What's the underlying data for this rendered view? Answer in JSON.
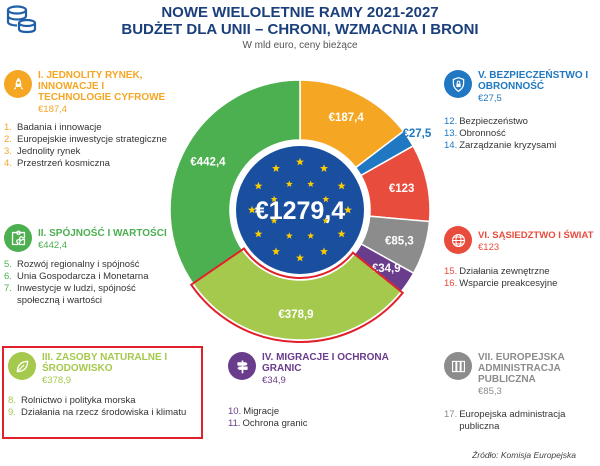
{
  "header": {
    "title_line1": "NOWE WIELOLETNIE RAMY 2021-2027",
    "title_line2": "BUDŻET DLA UNII – CHRONI, WZMACNIA I BRONI",
    "subtitle": "W mld euro, ceny bieżące"
  },
  "center_total": "€1279,4",
  "source": "Źródło: Komisja Europejska",
  "headings": {
    "h1": {
      "name": "I. JEDNOLITY RYNEK, INNOWACJE I TECHNOLOGIE CYFROWE",
      "amount": "€187,4",
      "color": "#f5a623",
      "icon": "rocket-icon"
    },
    "h2": {
      "name": "II. SPÓJNOŚĆ I WARTOŚCI",
      "amount": "€442,4",
      "color": "#4caf50",
      "icon": "puzzle-icon"
    },
    "h3": {
      "name": "III. ZASOBY NATURALNE I ŚRODOWISKO",
      "amount": "€378,9",
      "color": "#a5c94c",
      "icon": "leaf-icon"
    },
    "h4": {
      "name": "IV. MIGRACJE I OCHRONA GRANIC",
      "amount": "€34,9",
      "color": "#6a3c8c",
      "icon": "signpost-icon"
    },
    "h5": {
      "name": "V. BEZPIECZEŃSTWO I OBRONNOŚĆ",
      "amount": "€27,5",
      "color": "#1f78c1",
      "icon": "shield-lock-icon"
    },
    "h6": {
      "name": "VI. SĄSIEDZTWO I ŚWIAT",
      "amount": "€123",
      "color": "#e84c3d",
      "icon": "globe-icon"
    },
    "h7": {
      "name": "VII. EUROPEJSKA ADMINISTRACJA PUBLICZNA",
      "amount": "€85,3",
      "color": "#8c8c8c",
      "icon": "binders-icon"
    }
  },
  "items": {
    "h1": [
      {
        "n": "1.",
        "t": "Badania i innowacje"
      },
      {
        "n": "2.",
        "t": "Europejskie inwestycje strategiczne"
      },
      {
        "n": "3.",
        "t": "Jednolity rynek"
      },
      {
        "n": "4.",
        "t": "Przestrzeń kosmiczna"
      }
    ],
    "h2": [
      {
        "n": "5.",
        "t": "Rozwój regionalny i spójność"
      },
      {
        "n": "6.",
        "t": "Unia Gospodarcza i Monetarna"
      },
      {
        "n": "7.",
        "t": "Inwestycje w ludzi, spójność społeczną i wartości"
      }
    ],
    "h3": [
      {
        "n": "8.",
        "t": "Rolnictwo i polityka morska"
      },
      {
        "n": "9.",
        "t": "Działania na rzecz środowiska i klimatu"
      }
    ],
    "h4": [
      {
        "n": "10.",
        "t": "Migracje"
      },
      {
        "n": "11.",
        "t": "Ochrona granic"
      }
    ],
    "h5": [
      {
        "n": "12.",
        "t": "Bezpieczeństwo"
      },
      {
        "n": "13.",
        "t": "Obronność"
      },
      {
        "n": "14.",
        "t": "Zarządzanie kryzysami"
      }
    ],
    "h6": [
      {
        "n": "15.",
        "t": "Działania zewnętrzne"
      },
      {
        "n": "16.",
        "t": "Wsparcie preakcesyjne"
      }
    ],
    "h7": [
      {
        "n": "17.",
        "t": "Europejska administracja publiczna"
      }
    ]
  },
  "chart_data": {
    "type": "pie",
    "categories": [
      "I. JEDNOLITY RYNEK, INNOWACJE I TECHNOLOGIE CYFROWE",
      "V. BEZPIECZEŃSTWO I OBRONNOŚĆ",
      "VI. SĄSIEDZTWO I ŚWIAT",
      "VII. EUROPEJSKA ADMINISTRACJA PUBLICZNA",
      "IV. MIGRACJE I OCHRONA GRANIC",
      "III. ZASOBY NATURALNE I ŚRODOWISKO",
      "II. SPÓJNOŚĆ I WARTOŚCI"
    ],
    "values": [
      187.4,
      27.5,
      123,
      85.3,
      34.9,
      378.9,
      442.4
    ],
    "labels": [
      "€187,4",
      "€27,5",
      "€123",
      "€85,3",
      "€34,9",
      "€378,9",
      "€442,4"
    ],
    "colors": [
      "#f5a623",
      "#1f78c1",
      "#e84c3d",
      "#8c8c8c",
      "#6a3c8c",
      "#a5c94c",
      "#4caf50"
    ],
    "total": 1279.4,
    "highlighted": "III. ZASOBY NATURALNE I ŚRODOWISKO"
  }
}
